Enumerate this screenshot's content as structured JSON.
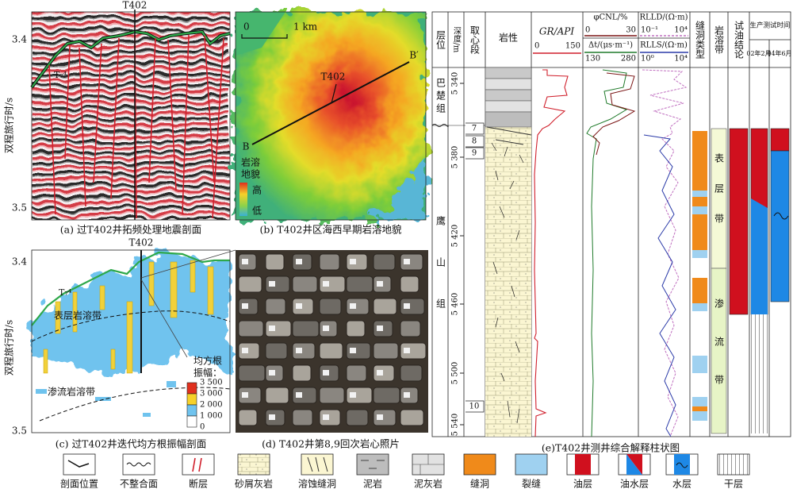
{
  "panel_a": {
    "well": "T402",
    "yticks": [
      "3.4",
      "3.5"
    ],
    "horizon": "T₇⁴",
    "ylabel": "双程旅行时/s",
    "caption": "(a) 过T402井拓频处理地震剖面"
  },
  "panel_b": {
    "scale_start": "0",
    "scale_end": "1 km",
    "well": "T402",
    "section_start": "B",
    "section_end": "B′",
    "legend_title_1": "岩溶",
    "legend_title_2": "地貌",
    "legend_high": "高",
    "legend_low": "低",
    "caption": "(b) T402井区海西早期岩溶地貌"
  },
  "panel_c": {
    "well": "T402",
    "yticks": [
      "3.4",
      "3.5"
    ],
    "horizon": "T₇⁴",
    "zone_upper": "表层岩溶带",
    "zone_lower": "渗流岩溶带",
    "legend_title_1": "均方根",
    "legend_title_2": "振幅：",
    "legend_ticks": [
      "3 500",
      "3 000",
      "2 000",
      "1 000",
      "0"
    ],
    "ylabel": "双程旅行时/s",
    "caption": "(c) 过T402井迭代均方根振幅剖面"
  },
  "panel_d": {
    "caption": "(d) T402井第8,9回次岩心照片"
  },
  "panel_e": {
    "headers": {
      "layer": "层位",
      "depth": "深度/m",
      "core": "取心段",
      "lithology": "岩性",
      "fracture": "缝洞类型",
      "karst": "岩溶带",
      "test": "试油结论",
      "production": "生产测试时间"
    },
    "gr": {
      "name": "GR/API",
      "min": "0",
      "max": "150"
    },
    "cnl": {
      "name": "φCNL/%",
      "min": "0",
      "max": "30"
    },
    "dt": {
      "name": "Δt/(μs·m⁻¹)",
      "min": "130",
      "max": "280"
    },
    "rlld": {
      "name": "RLLD/(Ω·m)",
      "min": "10⁻¹",
      "max": "10⁴"
    },
    "rlls": {
      "name": "RLLS/(Ω·m)",
      "min": "10⁰",
      "max": "10⁴"
    },
    "test_times": [
      "02年2月",
      "04年6月"
    ],
    "depth_ticks": [
      "5 340",
      "5 380",
      "5 420",
      "5 460",
      "5 500",
      "5 540"
    ],
    "formations": [
      "巴楚组",
      "鹰山组"
    ],
    "cores": [
      "7",
      "8",
      "9",
      "10"
    ],
    "karst_zones": [
      "表层带",
      "渗流带"
    ],
    "caption": "(e)T402井测井综合解释柱状图"
  },
  "legend": [
    "剖面位置",
    "不整合面",
    "断层",
    "砂屑灰岩",
    "溶蚀缝洞",
    "泥岩",
    "泥灰岩",
    "缝洞",
    "裂缝",
    "油层",
    "油水层",
    "水层",
    "干层"
  ]
}
